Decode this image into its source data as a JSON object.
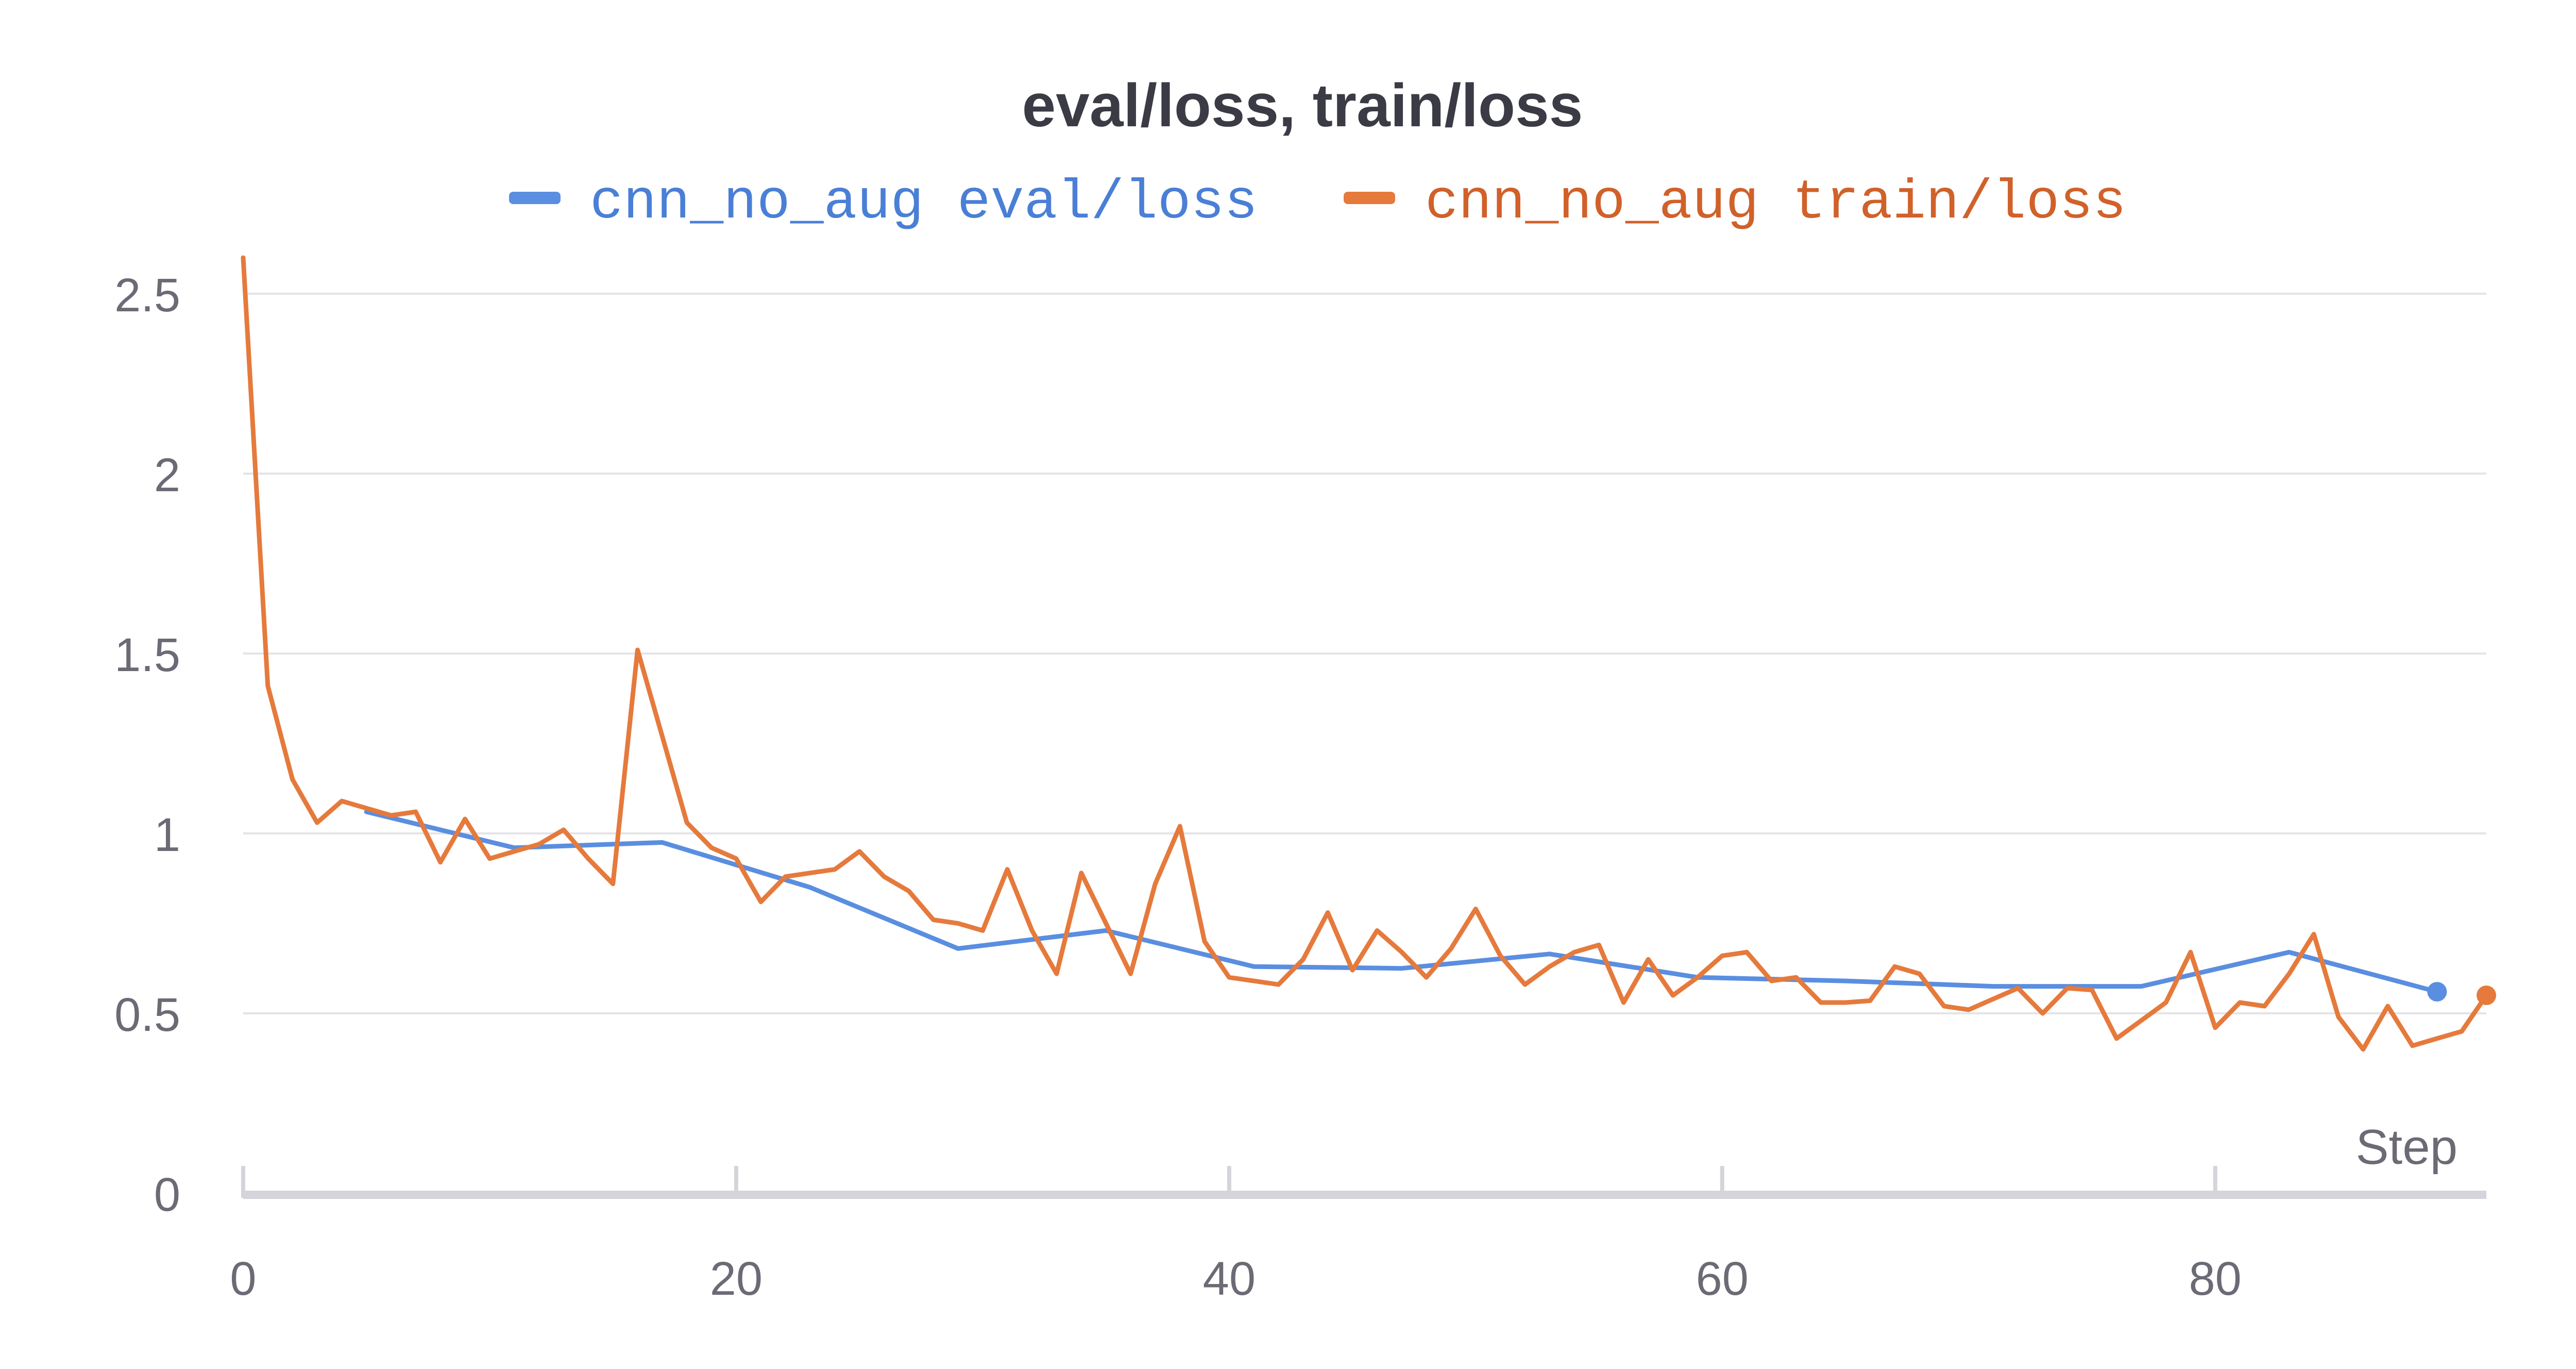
{
  "chart_data": {
    "type": "line",
    "title": "eval/loss, train/loss",
    "xlabel": "Step",
    "ylabel": "",
    "xlim": [
      0,
      91
    ],
    "ylim": [
      0,
      2.6
    ],
    "x_ticks": [
      "0",
      "20",
      "40",
      "60",
      "80"
    ],
    "x_tick_values": [
      0,
      20,
      40,
      60,
      80
    ],
    "y_ticks": [
      "0",
      "0.5",
      "1",
      "1.5",
      "2",
      "2.5"
    ],
    "y_tick_values": [
      0,
      0.5,
      1,
      1.5,
      2,
      2.5
    ],
    "grid": true,
    "legend_position": "top",
    "series": [
      {
        "name": "cnn_no_aug eval/loss",
        "color": "#5a8ee0",
        "points": [
          [
            5,
            1.06
          ],
          [
            11,
            0.96
          ],
          [
            17,
            0.975
          ],
          [
            23,
            0.85
          ],
          [
            29,
            0.68
          ],
          [
            35,
            0.73
          ],
          [
            41,
            0.63
          ],
          [
            47,
            0.625
          ],
          [
            53,
            0.665
          ],
          [
            59,
            0.6
          ],
          [
            65,
            0.59
          ],
          [
            71,
            0.575
          ],
          [
            77,
            0.575
          ],
          [
            83,
            0.67
          ],
          [
            89,
            0.56
          ]
        ]
      },
      {
        "name": "cnn_no_aug train/loss",
        "color": "#e57a3c",
        "points": [
          [
            0,
            2.6
          ],
          [
            1,
            1.41
          ],
          [
            2,
            1.15
          ],
          [
            3,
            1.03
          ],
          [
            4,
            1.09
          ],
          [
            5,
            1.07
          ],
          [
            6,
            1.05
          ],
          [
            7,
            1.06
          ],
          [
            8,
            0.92
          ],
          [
            9,
            1.04
          ],
          [
            10,
            0.93
          ],
          [
            11,
            0.95
          ],
          [
            12,
            0.97
          ],
          [
            13,
            1.01
          ],
          [
            14,
            0.93
          ],
          [
            15,
            0.86
          ],
          [
            16,
            1.51
          ],
          [
            17,
            1.27
          ],
          [
            18,
            1.03
          ],
          [
            19,
            0.96
          ],
          [
            20,
            0.93
          ],
          [
            21,
            0.81
          ],
          [
            22,
            0.88
          ],
          [
            23,
            0.89
          ],
          [
            24,
            0.9
          ],
          [
            25,
            0.95
          ],
          [
            26,
            0.88
          ],
          [
            27,
            0.84
          ],
          [
            28,
            0.76
          ],
          [
            29,
            0.75
          ],
          [
            30,
            0.73
          ],
          [
            31,
            0.9
          ],
          [
            32,
            0.73
          ],
          [
            33,
            0.61
          ],
          [
            34,
            0.89
          ],
          [
            35,
            0.75
          ],
          [
            36,
            0.61
          ],
          [
            37,
            0.86
          ],
          [
            38,
            1.02
          ],
          [
            39,
            0.7
          ],
          [
            40,
            0.6
          ],
          [
            41,
            0.59
          ],
          [
            42,
            0.58
          ],
          [
            43,
            0.65
          ],
          [
            44,
            0.78
          ],
          [
            45,
            0.62
          ],
          [
            46,
            0.73
          ],
          [
            47,
            0.67
          ],
          [
            48,
            0.6
          ],
          [
            49,
            0.68
          ],
          [
            50,
            0.79
          ],
          [
            51,
            0.66
          ],
          [
            52,
            0.58
          ],
          [
            53,
            0.63
          ],
          [
            54,
            0.67
          ],
          [
            55,
            0.69
          ],
          [
            56,
            0.53
          ],
          [
            57,
            0.65
          ],
          [
            58,
            0.55
          ],
          [
            59,
            0.6
          ],
          [
            60,
            0.66
          ],
          [
            61,
            0.67
          ],
          [
            62,
            0.59
          ],
          [
            63,
            0.6
          ],
          [
            64,
            0.53
          ],
          [
            65,
            0.53
          ],
          [
            66,
            0.535
          ],
          [
            67,
            0.63
          ],
          [
            68,
            0.61
          ],
          [
            69,
            0.52
          ],
          [
            70,
            0.51
          ],
          [
            71,
            0.54
          ],
          [
            72,
            0.57
          ],
          [
            73,
            0.5
          ],
          [
            74,
            0.57
          ],
          [
            75,
            0.565
          ],
          [
            76,
            0.43
          ],
          [
            77,
            0.48
          ],
          [
            78,
            0.53
          ],
          [
            79,
            0.67
          ],
          [
            80,
            0.46
          ],
          [
            81,
            0.53
          ],
          [
            82,
            0.52
          ],
          [
            83,
            0.61
          ],
          [
            84,
            0.72
          ],
          [
            85,
            0.49
          ],
          [
            86,
            0.4
          ],
          [
            87,
            0.52
          ],
          [
            88,
            0.41
          ],
          [
            89,
            0.43
          ],
          [
            90,
            0.45
          ],
          [
            91,
            0.55
          ]
        ]
      }
    ]
  }
}
